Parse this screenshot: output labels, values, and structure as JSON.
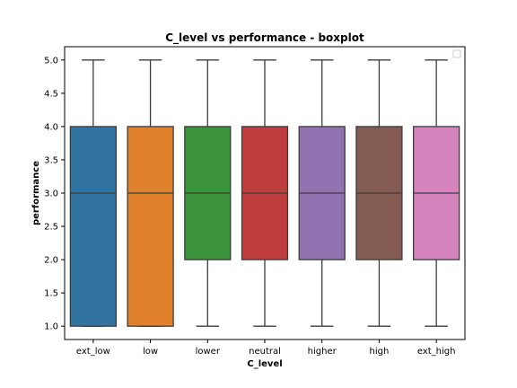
{
  "chart_data": {
    "type": "boxplot",
    "title": "C_level vs performance - boxplot",
    "xlabel": "C_level",
    "ylabel": "performance",
    "categories": [
      "ext_low",
      "low",
      "lower",
      "neutral",
      "higher",
      "high",
      "ext_high"
    ],
    "boxes": [
      {
        "min": 1.0,
        "q1": 1.0,
        "median": 3.0,
        "q3": 4.0,
        "max": 5.0
      },
      {
        "min": 1.0,
        "q1": 1.0,
        "median": 3.0,
        "q3": 4.0,
        "max": 5.0
      },
      {
        "min": 1.0,
        "q1": 2.0,
        "median": 3.0,
        "q3": 4.0,
        "max": 5.0
      },
      {
        "min": 1.0,
        "q1": 2.0,
        "median": 3.0,
        "q3": 4.0,
        "max": 5.0
      },
      {
        "min": 1.0,
        "q1": 2.0,
        "median": 3.0,
        "q3": 4.0,
        "max": 5.0
      },
      {
        "min": 1.0,
        "q1": 2.0,
        "median": 3.0,
        "q3": 4.0,
        "max": 5.0
      },
      {
        "min": 1.0,
        "q1": 2.0,
        "median": 3.0,
        "q3": 4.0,
        "max": 5.0
      }
    ],
    "colors": [
      "#3274a1",
      "#e1812c",
      "#3a923a",
      "#c03d3e",
      "#9372b2",
      "#845b53",
      "#d684bd"
    ],
    "yticks": [
      "1.0",
      "1.5",
      "2.0",
      "2.5",
      "3.0",
      "3.5",
      "4.0",
      "4.5",
      "5.0"
    ],
    "ylim": [
      0.8,
      5.2
    ],
    "grid": false,
    "legend": "top-right",
    "legend_entries": []
  }
}
